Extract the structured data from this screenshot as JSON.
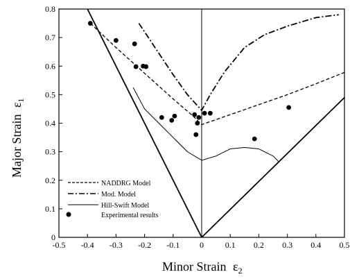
{
  "chart_data": {
    "type": "scatter",
    "xlabel": "Minor Strain",
    "xlabel_symbol": "ε",
    "xlabel_sub": "2",
    "ylabel": "Major Strain",
    "ylabel_symbol": "ε",
    "ylabel_sub": "1",
    "xlim": [
      -0.5,
      0.5
    ],
    "ylim": [
      0,
      0.8
    ],
    "xticks": [
      "-0.5",
      "-0.4",
      "-0.3",
      "-0.2",
      "-0.1",
      "0",
      "0.1",
      "0.2",
      "0.3",
      "0.4",
      "0.5"
    ],
    "xtick_values": [
      -0.5,
      -0.4,
      -0.3,
      -0.2,
      -0.1,
      0,
      0.1,
      0.2,
      0.3,
      0.4,
      0.5
    ],
    "yticks": [
      "0",
      "0.1",
      "0.2",
      "0.3",
      "0.4",
      "0.5",
      "0.6",
      "0.7",
      "0.8"
    ],
    "ytick_values": [
      0,
      0.1,
      0.2,
      0.3,
      0.4,
      0.5,
      0.6,
      0.7,
      0.8
    ],
    "grid": false,
    "legend_position": "bottom-left",
    "legend": [
      {
        "label": "NADDRG Model",
        "style": "dashed"
      },
      {
        "label": "Mod. Model",
        "style": "dashdot"
      },
      {
        "label": "Hill-Swift Model",
        "style": "solid"
      },
      {
        "label": "Experimental results",
        "style": "marker"
      }
    ],
    "series": [
      {
        "name": "NADDRG Model",
        "style": "dashed",
        "x": [
          -0.39,
          -0.3,
          -0.2,
          -0.1,
          -0.03,
          0,
          0.1,
          0.2,
          0.3,
          0.4,
          0.5
        ],
        "y": [
          0.75,
          0.665,
          0.575,
          0.485,
          0.425,
          0.395,
          0.43,
          0.465,
          0.5,
          0.538,
          0.578
        ]
      },
      {
        "name": "Mod. Model",
        "style": "dashdot",
        "x": [
          -0.22,
          -0.15,
          -0.1,
          -0.05,
          0,
          0.03,
          0.08,
          0.15,
          0.22,
          0.3,
          0.4,
          0.48
        ],
        "y": [
          0.75,
          0.645,
          0.57,
          0.5,
          0.445,
          0.5,
          0.58,
          0.665,
          0.71,
          0.74,
          0.77,
          0.78
        ]
      },
      {
        "name": "Hill-Swift Model",
        "style": "solid",
        "x": [
          -0.24,
          -0.2,
          -0.15,
          -0.1,
          -0.05,
          0,
          0.05,
          0.1,
          0.15,
          0.2,
          0.25,
          0.27
        ],
        "y": [
          0.525,
          0.45,
          0.4,
          0.35,
          0.3,
          0.27,
          0.285,
          0.31,
          0.315,
          0.31,
          0.285,
          0.265
        ]
      },
      {
        "name": "Experimental results",
        "style": "marker",
        "x": [
          -0.39,
          -0.3,
          -0.235,
          -0.23,
          -0.205,
          -0.195,
          -0.14,
          -0.105,
          -0.095,
          -0.025,
          -0.02,
          -0.015,
          -0.01,
          0.01,
          0.03,
          0.185,
          0.305
        ],
        "y": [
          0.75,
          0.69,
          0.678,
          0.598,
          0.6,
          0.598,
          0.42,
          0.41,
          0.425,
          0.43,
          0.36,
          0.4,
          0.42,
          0.435,
          0.435,
          0.345,
          0.455
        ]
      }
    ],
    "boundary_lines": [
      {
        "x": [
          -0.4,
          0
        ],
        "y": [
          0.8,
          0
        ]
      },
      {
        "x": [
          0,
          0.5
        ],
        "y": [
          0,
          0.49
        ]
      },
      {
        "x": [
          0,
          0
        ],
        "y": [
          0,
          0.8
        ]
      }
    ]
  }
}
